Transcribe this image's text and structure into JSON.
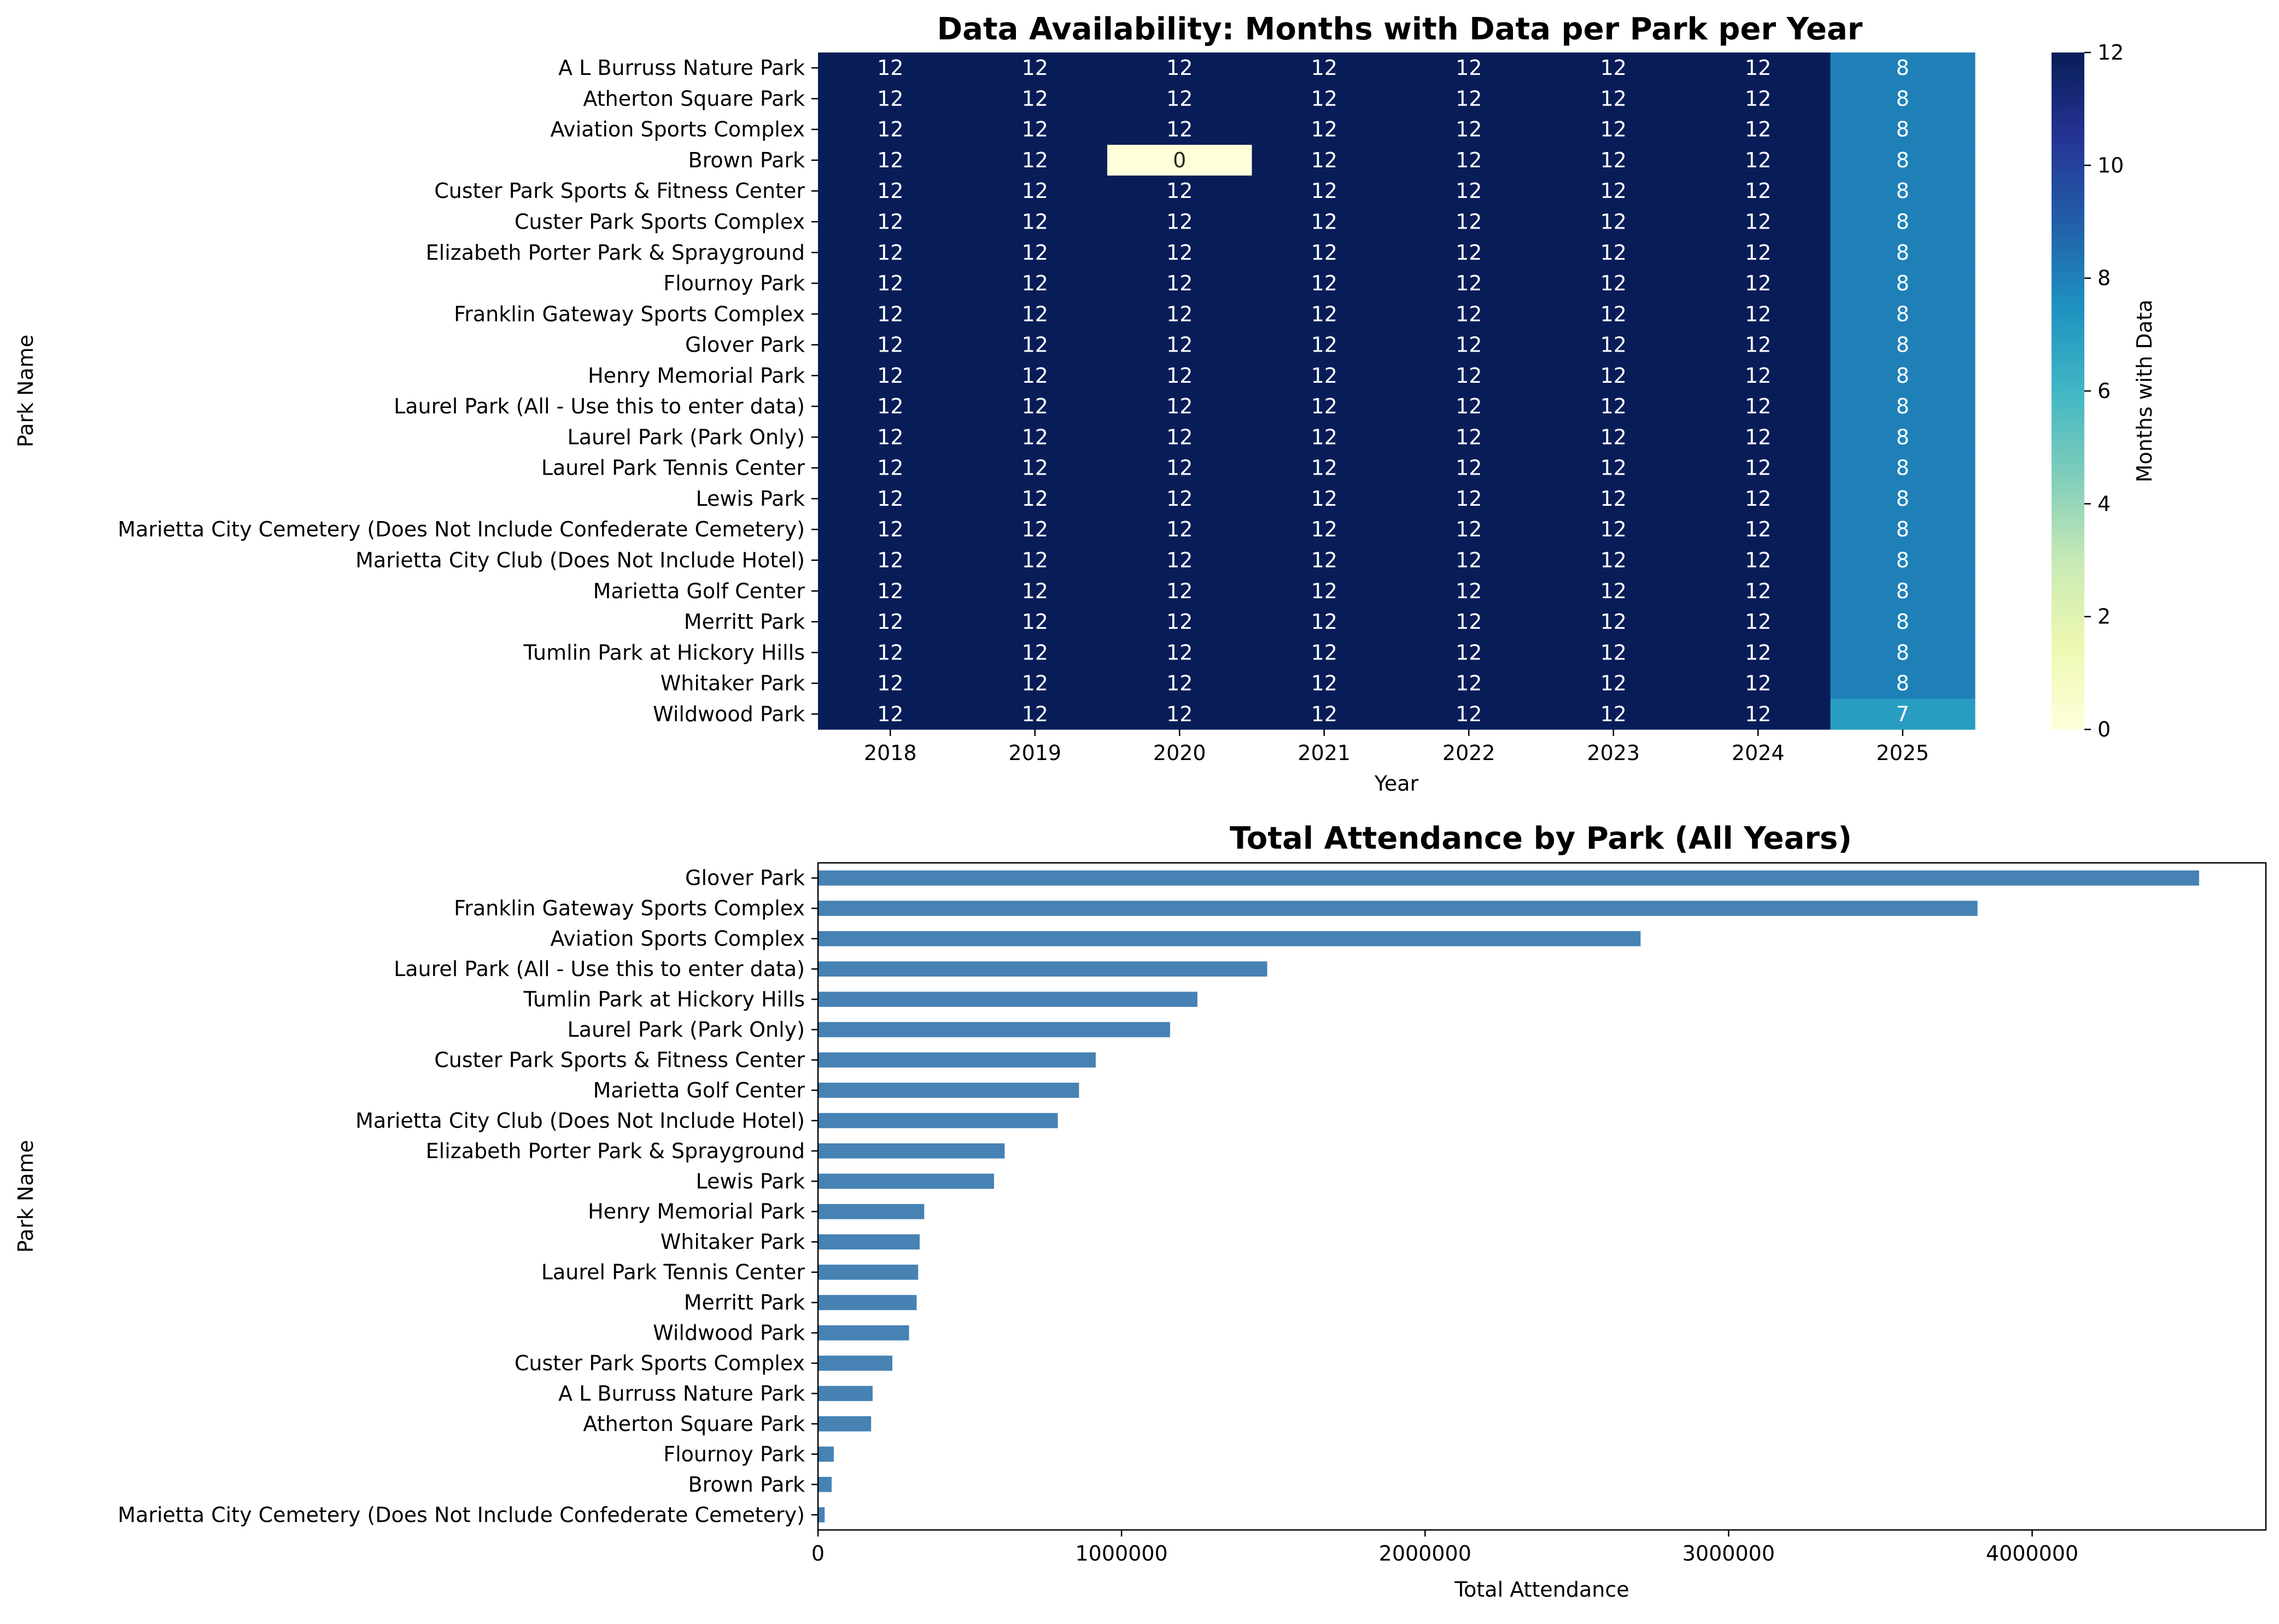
{
  "chart_data": [
    {
      "type": "heatmap",
      "title": "Data Availability: Months with Data per Park per Year",
      "xlabel": "Year",
      "ylabel": "Park Name",
      "x": [
        "2018",
        "2019",
        "2020",
        "2021",
        "2022",
        "2023",
        "2024",
        "2025"
      ],
      "y": [
        "A L Burruss Nature Park",
        "Atherton Square Park",
        "Aviation Sports Complex",
        "Brown Park",
        "Custer Park Sports & Fitness Center",
        "Custer Park Sports Complex",
        "Elizabeth Porter Park & Sprayground",
        "Flournoy Park",
        "Franklin Gateway Sports Complex",
        "Glover Park",
        "Henry Memorial Park",
        "Laurel Park (All - Use this to enter data)",
        "Laurel Park (Park Only)",
        "Laurel Park Tennis Center",
        "Lewis Park",
        "Marietta City Cemetery (Does Not Include Confederate Cemetery)",
        "Marietta City Club (Does Not Include Hotel)",
        "Marietta Golf Center",
        "Merritt Park",
        "Tumlin Park at Hickory Hills",
        "Whitaker Park",
        "Wildwood Park"
      ],
      "values": [
        [
          12,
          12,
          12,
          12,
          12,
          12,
          12,
          8
        ],
        [
          12,
          12,
          12,
          12,
          12,
          12,
          12,
          8
        ],
        [
          12,
          12,
          12,
          12,
          12,
          12,
          12,
          8
        ],
        [
          12,
          12,
          0,
          12,
          12,
          12,
          12,
          8
        ],
        [
          12,
          12,
          12,
          12,
          12,
          12,
          12,
          8
        ],
        [
          12,
          12,
          12,
          12,
          12,
          12,
          12,
          8
        ],
        [
          12,
          12,
          12,
          12,
          12,
          12,
          12,
          8
        ],
        [
          12,
          12,
          12,
          12,
          12,
          12,
          12,
          8
        ],
        [
          12,
          12,
          12,
          12,
          12,
          12,
          12,
          8
        ],
        [
          12,
          12,
          12,
          12,
          12,
          12,
          12,
          8
        ],
        [
          12,
          12,
          12,
          12,
          12,
          12,
          12,
          8
        ],
        [
          12,
          12,
          12,
          12,
          12,
          12,
          12,
          8
        ],
        [
          12,
          12,
          12,
          12,
          12,
          12,
          12,
          8
        ],
        [
          12,
          12,
          12,
          12,
          12,
          12,
          12,
          8
        ],
        [
          12,
          12,
          12,
          12,
          12,
          12,
          12,
          8
        ],
        [
          12,
          12,
          12,
          12,
          12,
          12,
          12,
          8
        ],
        [
          12,
          12,
          12,
          12,
          12,
          12,
          12,
          8
        ],
        [
          12,
          12,
          12,
          12,
          12,
          12,
          12,
          8
        ],
        [
          12,
          12,
          12,
          12,
          12,
          12,
          12,
          8
        ],
        [
          12,
          12,
          12,
          12,
          12,
          12,
          12,
          8
        ],
        [
          12,
          12,
          12,
          12,
          12,
          12,
          12,
          8
        ],
        [
          12,
          12,
          12,
          12,
          12,
          12,
          12,
          7
        ]
      ],
      "colorbar": {
        "label": "Months with Data",
        "range": [
          0,
          12
        ],
        "ticks": [
          "0",
          "2",
          "4",
          "6",
          "8",
          "10",
          "12"
        ],
        "colormap": [
          "#ffffd9",
          "#edf8b1",
          "#c7e9b4",
          "#7fcdbb",
          "#41b6c4",
          "#1d91c0",
          "#225ea8",
          "#253494",
          "#081d58"
        ]
      },
      "annotated": true
    },
    {
      "type": "bar",
      "orientation": "horizontal",
      "title": "Total Attendance by Park (All Years)",
      "xlabel": "Total Attendance",
      "ylabel": "Park Name",
      "categories": [
        "Glover Park",
        "Franklin Gateway Sports Complex",
        "Aviation Sports Complex",
        "Laurel Park (All - Use this to enter data)",
        "Tumlin Park at Hickory Hills",
        "Laurel Park (Park Only)",
        "Custer Park Sports & Fitness Center",
        "Marietta Golf Center",
        "Marietta City Club (Does Not Include Hotel)",
        "Elizabeth Porter Park & Sprayground",
        "Lewis Park",
        "Henry Memorial Park",
        "Whitaker Park",
        "Laurel Park Tennis Center",
        "Merritt Park",
        "Wildwood Park",
        "Custer Park Sports Complex",
        "A L Burruss Nature Park",
        "Atherton Square Park",
        "Flournoy Park",
        "Brown Park",
        "Marietta City Cemetery (Does Not Include Confederate Cemetery)"
      ],
      "values": [
        4550000,
        3820000,
        2710000,
        1480000,
        1250000,
        1160000,
        915000,
        860000,
        790000,
        615000,
        580000,
        350000,
        335000,
        330000,
        325000,
        300000,
        245000,
        180000,
        175000,
        52000,
        45000,
        22000
      ],
      "xlim": [
        0,
        4770000
      ],
      "xticks": [
        "0",
        "1000000",
        "2000000",
        "3000000",
        "4000000"
      ],
      "color": "#4682b4"
    }
  ]
}
